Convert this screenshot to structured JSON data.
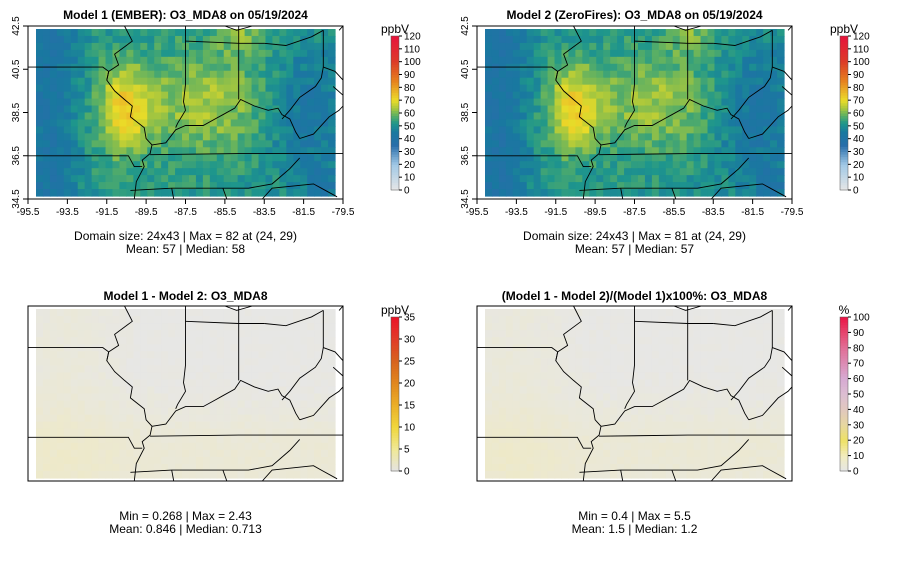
{
  "panels": [
    {
      "title": "Model 1 (EMBER): O3_MDA8 on 05/19/2024",
      "stats_line1": "Domain size: 24x43 | Max = 82 at (24, 29)",
      "stats_line2": "Mean: 57 |  Median: 58",
      "unit": "ppbV",
      "colorbar_ticks": [
        "0",
        "10",
        "20",
        "30",
        "40",
        "50",
        "60",
        "70",
        "80",
        "90",
        "100",
        "110",
        "120"
      ]
    },
    {
      "title": "Model 2 (ZeroFires): O3_MDA8 on 05/19/2024",
      "stats_line1": "Domain size: 24x43 | Max = 81 at (24, 29)",
      "stats_line2": "Mean: 57 |  Median: 57",
      "unit": "ppbV",
      "colorbar_ticks": [
        "0",
        "10",
        "20",
        "30",
        "40",
        "50",
        "60",
        "70",
        "80",
        "90",
        "100",
        "110",
        "120"
      ]
    },
    {
      "title": "Model 1 - Model 2: O3_MDA8",
      "stats_line1": "Min = 0.268 | Max = 2.43",
      "stats_line2": "Mean: 0.846 |  Median: 0.713",
      "unit": "ppbV",
      "colorbar_ticks": [
        "0",
        "5",
        "10",
        "15",
        "20",
        "25",
        "30",
        "35"
      ]
    },
    {
      "title": "(Model 1 - Model 2)/(Model 1)x100%: O3_MDA8",
      "stats_line1": "Min = 0.4 | Max = 5.5",
      "stats_line2": "Mean: 1.5 |  Median: 1.2",
      "unit": "%",
      "colorbar_ticks": [
        "0",
        "10",
        "20",
        "30",
        "40",
        "50",
        "60",
        "70",
        "80",
        "90",
        "100"
      ]
    }
  ],
  "chart_data": [
    {
      "type": "heatmap",
      "title": "Model 1 (EMBER): O3_MDA8 on 05/19/2024",
      "x_ticks": [
        "-95.5",
        "-93.5",
        "-91.5",
        "-89.5",
        "-87.5",
        "-85.5",
        "-83.5",
        "-81.5",
        "-79.5"
      ],
      "y_ticks": [
        "34.5",
        "36.5",
        "38.5",
        "40.5",
        "42.5"
      ],
      "xlim": [
        -95.5,
        -79.5
      ],
      "ylim": [
        34.5,
        42.5
      ],
      "grid_size": [
        24,
        43
      ],
      "max": 82,
      "max_at": [
        24,
        29
      ],
      "mean": 57,
      "median": 58,
      "colorbar": {
        "unit": "ppbV",
        "min": 0,
        "max": 120
      }
    },
    {
      "type": "heatmap",
      "title": "Model 2 (ZeroFires): O3_MDA8 on 05/19/2024",
      "x_ticks": [
        "-95.5",
        "-93.5",
        "-91.5",
        "-89.5",
        "-87.5",
        "-85.5",
        "-83.5",
        "-81.5",
        "-79.5"
      ],
      "y_ticks": [
        "34.5",
        "36.5",
        "38.5",
        "40.5",
        "42.5"
      ],
      "xlim": [
        -95.5,
        -79.5
      ],
      "ylim": [
        34.5,
        42.5
      ],
      "grid_size": [
        24,
        43
      ],
      "max": 81,
      "max_at": [
        24,
        29
      ],
      "mean": 57,
      "median": 57,
      "colorbar": {
        "unit": "ppbV",
        "min": 0,
        "max": 120
      }
    },
    {
      "type": "heatmap",
      "title": "Model 1 - Model 2: O3_MDA8",
      "min": 0.268,
      "max": 2.43,
      "mean": 0.846,
      "median": 0.713,
      "colorbar": {
        "unit": "ppbV",
        "min": 0,
        "max": 35
      }
    },
    {
      "type": "heatmap",
      "title": "(Model 1 - Model 2)/(Model 1)x100%: O3_MDA8",
      "min": 0.4,
      "max": 5.5,
      "mean": 1.5,
      "median": 1.2,
      "colorbar": {
        "unit": "%",
        "min": 0,
        "max": 100
      }
    }
  ]
}
